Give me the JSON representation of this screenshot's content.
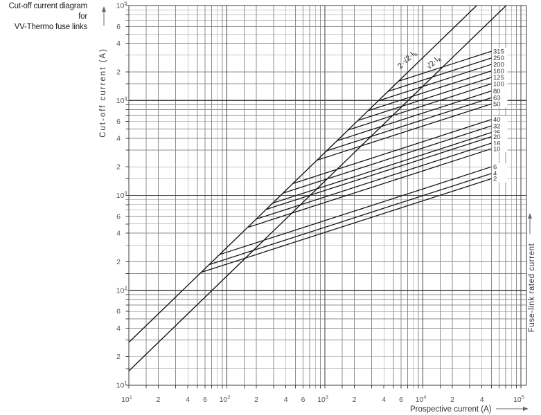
{
  "title": {
    "line1": "Cut-off current diagram for",
    "line2": "VV-Thermo fuse links"
  },
  "colors": {
    "background": "#ffffff",
    "grid_major": "#3d3d3d",
    "grid_minor": "#8c8c8c",
    "curve": "#161616",
    "tick_text": "#555555",
    "label_text": "#333333"
  },
  "chart_data": {
    "type": "line",
    "title": "Cut-off current diagram for VV-Thermo fuse links",
    "xlabel": "Prospective current (A)",
    "ylabel": "Cut-off current (A)",
    "y2label": "Fuse-link rated current",
    "x_scale": "log",
    "y_scale": "log",
    "x_range": [
      10,
      100000
    ],
    "y_range": [
      10,
      100000
    ],
    "grid": {
      "on": true,
      "minor_multiples": [
        1.5,
        2,
        3,
        4,
        5,
        6,
        7,
        8,
        9
      ]
    },
    "x_ticks": [
      {
        "text": "10",
        "exp": "1",
        "value": 10
      },
      {
        "text": "2",
        "value": 20
      },
      {
        "text": "4",
        "value": 40
      },
      {
        "text": "6",
        "value": 60
      },
      {
        "text": "10",
        "exp": "2",
        "value": 100
      },
      {
        "text": "2",
        "value": 200
      },
      {
        "text": "4",
        "value": 400
      },
      {
        "text": "6",
        "value": 600
      },
      {
        "text": "10",
        "exp": "3",
        "value": 1000
      },
      {
        "text": "2",
        "value": 2000
      },
      {
        "text": "4",
        "value": 4000
      },
      {
        "text": "6",
        "value": 6000
      },
      {
        "text": "10",
        "exp": "4",
        "value": 10000
      },
      {
        "text": "2",
        "value": 20000
      },
      {
        "text": "4",
        "value": 40000
      },
      {
        "text": "10",
        "exp": "5",
        "value": 100000
      }
    ],
    "y_ticks": [
      {
        "text": "10",
        "exp": "5",
        "value": 100000
      },
      {
        "text": "6",
        "value": 60000
      },
      {
        "text": "4",
        "value": 40000
      },
      {
        "text": "2",
        "value": 20000
      },
      {
        "text": "10",
        "exp": "4",
        "value": 10000
      },
      {
        "text": "6",
        "value": 6000
      },
      {
        "text": "4",
        "value": 4000
      },
      {
        "text": "2",
        "value": 2000
      },
      {
        "text": "10",
        "exp": "3",
        "value": 1000
      },
      {
        "text": "6",
        "value": 600
      },
      {
        "text": "4",
        "value": 400
      },
      {
        "text": "2",
        "value": 200
      },
      {
        "text": "10",
        "exp": "2",
        "value": 100
      },
      {
        "text": "6",
        "value": 60
      },
      {
        "text": "4",
        "value": 40
      },
      {
        "text": "2",
        "value": 20
      },
      {
        "text": "10",
        "exp": "1",
        "value": 10
      }
    ],
    "reference_lines": [
      {
        "name": "2-sqrt2-Ik",
        "label": "2·√2·I",
        "sub": "k",
        "factor": 2.828,
        "description": "cut-off current = 2·√2 × prospective current"
      },
      {
        "name": "sqrt2-Ik",
        "label": "√2·I",
        "sub": "k",
        "factor": 1.414,
        "description": "cut-off current = √2 × prospective current"
      }
    ],
    "fuse_line_slope_loglog": 0.3333,
    "lines_end_at_prospective_A": 50000,
    "fuse_lines": [
      {
        "label": "315",
        "rating_A": 315,
        "cutoff_at_50kA_A": 33000
      },
      {
        "label": "250",
        "rating_A": 250,
        "cutoff_at_50kA_A": 28000
      },
      {
        "label": "200",
        "rating_A": 200,
        "cutoff_at_50kA_A": 24000
      },
      {
        "label": "160",
        "rating_A": 160,
        "cutoff_at_50kA_A": 20500
      },
      {
        "label": "125",
        "rating_A": 125,
        "cutoff_at_50kA_A": 17500
      },
      {
        "label": "100",
        "rating_A": 100,
        "cutoff_at_50kA_A": 15000
      },
      {
        "label": "80",
        "rating_A": 80,
        "cutoff_at_50kA_A": 12600
      },
      {
        "label": "63",
        "rating_A": 63,
        "cutoff_at_50kA_A": 10700
      },
      {
        "label": "50",
        "rating_A": 50,
        "cutoff_at_50kA_A": 9200
      },
      {
        "label": "40",
        "rating_A": 40,
        "cutoff_at_50kA_A": 6300
      },
      {
        "label": "32",
        "rating_A": 32,
        "cutoff_at_50kA_A": 5400
      },
      {
        "label": "25",
        "rating_A": 25,
        "cutoff_at_50kA_A": 4600
      },
      {
        "label": "20",
        "rating_A": 20,
        "cutoff_at_50kA_A": 4150
      },
      {
        "label": "16",
        "rating_A": 16,
        "cutoff_at_50kA_A": 3550
      },
      {
        "label": "10",
        "rating_A": 10,
        "cutoff_at_50kA_A": 3100
      },
      {
        "label": "6",
        "rating_A": 6,
        "cutoff_at_50kA_A": 2000
      },
      {
        "label": "4",
        "rating_A": 4,
        "cutoff_at_50kA_A": 1700
      },
      {
        "label": "2",
        "rating_A": 2,
        "cutoff_at_50kA_A": 1500
      }
    ]
  }
}
